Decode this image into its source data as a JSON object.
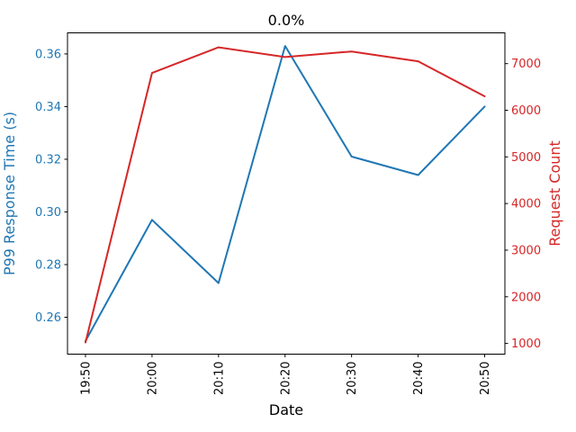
{
  "figure": {
    "background": "#ffffff"
  },
  "chart_data": {
    "type": "line",
    "title": "0.0%",
    "xlabel": "Date",
    "x_tick_labels": [
      "19:50",
      "20:00",
      "20:10",
      "20:20",
      "20:30",
      "20:40",
      "20:50"
    ],
    "grid": false,
    "legend": "none",
    "axes": {
      "left": {
        "label": "P99 Response Time (s)",
        "color": "#1f77b4",
        "ylim": [
          0.246,
          0.368
        ],
        "ticks": [
          {
            "value": 0.26,
            "label": "0.26"
          },
          {
            "value": 0.28,
            "label": "0.28"
          },
          {
            "value": 0.3,
            "label": "0.30"
          },
          {
            "value": 0.32,
            "label": "0.32"
          },
          {
            "value": 0.34,
            "label": "0.34"
          },
          {
            "value": 0.36,
            "label": "0.36"
          }
        ]
      },
      "right": {
        "label": "Request Count",
        "color": "#d62728",
        "ylim": [
          770,
          7660
        ],
        "ticks": [
          {
            "value": 1000,
            "label": "1000"
          },
          {
            "value": 2000,
            "label": "2000"
          },
          {
            "value": 3000,
            "label": "3000"
          },
          {
            "value": 4000,
            "label": "4000"
          },
          {
            "value": 5000,
            "label": "5000"
          },
          {
            "value": 6000,
            "label": "6000"
          },
          {
            "value": 7000,
            "label": "7000"
          }
        ]
      }
    },
    "series": [
      {
        "name": "P99 Response Time (s)",
        "slug": "p99-response-time",
        "axis": "left",
        "color": "#1f77b4",
        "values": [
          0.251,
          0.297,
          0.273,
          0.363,
          0.321,
          0.314,
          0.34
        ]
      },
      {
        "name": "Request Count",
        "slug": "request-count",
        "axis": "right",
        "color": "#d62728",
        "values": [
          1020,
          6800,
          7350,
          7140,
          7260,
          7050,
          6300
        ]
      }
    ]
  }
}
